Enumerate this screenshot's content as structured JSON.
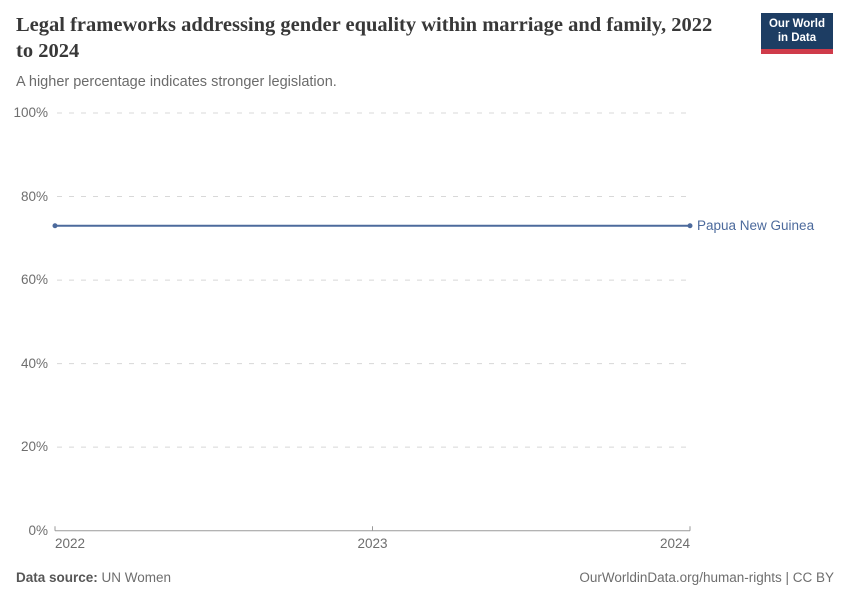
{
  "header": {
    "title": "Legal frameworks addressing gender equality within marriage and family, 2022 to 2024",
    "subtitle": "A higher percentage indicates stronger legislation.",
    "logo": {
      "line1": "Our World",
      "line2": "in Data"
    }
  },
  "chart_data": {
    "type": "line",
    "title": "Legal frameworks addressing gender equality within marriage and family, 2022 to 2024",
    "x": [
      2022,
      2023,
      2024
    ],
    "x_tick_labels": [
      "2022",
      "2023",
      "2024"
    ],
    "xlim": [
      2022,
      2024
    ],
    "y_ticks": [
      0,
      20,
      40,
      60,
      80,
      100
    ],
    "y_tick_labels": [
      "0%",
      "20%",
      "40%",
      "60%",
      "80%",
      "100%"
    ],
    "ylim": [
      0,
      100
    ],
    "ylabel": "",
    "xlabel": "",
    "grid": "horizontal-dashed",
    "legend_position": "end-of-line-label",
    "series": [
      {
        "name": "Papua New Guinea",
        "values": [
          73,
          73,
          73
        ],
        "color": "#4c6a9c"
      }
    ],
    "unit": "%"
  },
  "footer": {
    "data_source_label": "Data source:",
    "data_source_value": " UN Women",
    "note": "OurWorldinData.org/human-rights | CC BY"
  },
  "colors": {
    "logo_bg": "#1d3d63",
    "logo_accent": "#cf3b4a",
    "grid": "#d8d8d8",
    "axis": "#9a9a9a",
    "tick_text": "#6e6e6e",
    "series_blue": "#4c6a9c"
  }
}
